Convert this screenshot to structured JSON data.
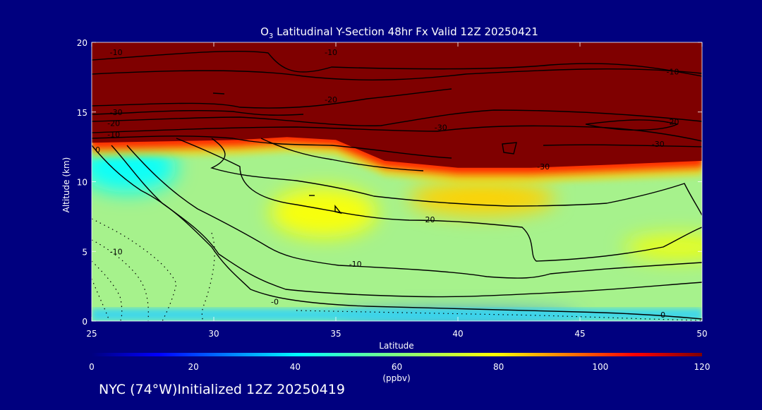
{
  "chart_data": {
    "type": "heatmap",
    "title_prefix": "O",
    "title_sub": "3",
    "title_rest": " Latitudinal Y-Section 48hr  Fx Valid 12Z 20250421",
    "xlabel": "Latitude",
    "ylabel": "Altitude (km)",
    "xlim": [
      25,
      50
    ],
    "ylim": [
      0,
      20
    ],
    "x_ticks": [
      25,
      30,
      35,
      40,
      45,
      50
    ],
    "y_ticks": [
      0,
      5,
      10,
      15,
      20
    ],
    "colorbar": {
      "label": "(ppbv)",
      "range": [
        0,
        120
      ],
      "ticks": [
        0,
        20,
        40,
        60,
        80,
        100,
        120
      ]
    },
    "ozone_field": {
      "stratosphere_level_ppbv": 120,
      "tropopause_altitude_km": [
        [
          25,
          12.8
        ],
        [
          28,
          12.9
        ],
        [
          31,
          13.0
        ],
        [
          33,
          13.2
        ],
        [
          35,
          13.0
        ],
        [
          37,
          11.5
        ],
        [
          40,
          11.0
        ],
        [
          43,
          11.0
        ],
        [
          46,
          11.2
        ],
        [
          50,
          11.5
        ]
      ],
      "blobs": [
        {
          "lat": 26.5,
          "alt": 11.0,
          "ppbv": 42,
          "rlat": 2.0,
          "ralt": 1.8
        },
        {
          "lat": 34.5,
          "alt": 7.8,
          "ppbv": 78,
          "rlat": 2.2,
          "ralt": 1.8
        },
        {
          "lat": 41.0,
          "alt": 8.8,
          "ppbv": 84,
          "rlat": 3.0,
          "ralt": 1.2
        },
        {
          "lat": 49.0,
          "alt": 5.3,
          "ppbv": 76,
          "rlat": 2.2,
          "ralt": 0.9
        },
        {
          "lat": 40.0,
          "alt": 0.2,
          "ppbv": 25,
          "rlat": 5.0,
          "ralt": 0.4
        }
      ]
    },
    "contour_labels": [
      {
        "text": "-10",
        "lat": 26.0,
        "alt": 19.3
      },
      {
        "text": "-10",
        "lat": 34.8,
        "alt": 19.3
      },
      {
        "text": "-10",
        "lat": 48.8,
        "alt": 17.9
      },
      {
        "text": "-20",
        "lat": 34.8,
        "alt": 15.9
      },
      {
        "text": "-30",
        "lat": 26.0,
        "alt": 15.0
      },
      {
        "text": "-20",
        "lat": 25.9,
        "alt": 14.2
      },
      {
        "text": "-10",
        "lat": 25.9,
        "alt": 13.4
      },
      {
        "text": "-30",
        "lat": 39.3,
        "alt": 13.9
      },
      {
        "text": "-20",
        "lat": 48.8,
        "alt": 14.3
      },
      {
        "text": "-30",
        "lat": 48.2,
        "alt": 12.7
      },
      {
        "text": "0",
        "lat": 25.25,
        "alt": 12.3
      },
      {
        "text": "-30",
        "lat": 43.5,
        "alt": 11.1
      },
      {
        "text": "-20",
        "lat": 38.8,
        "alt": 7.3
      },
      {
        "text": "-10",
        "lat": 26.0,
        "alt": 5.0
      },
      {
        "text": "-10",
        "lat": 35.8,
        "alt": 4.1
      },
      {
        "text": "-0",
        "lat": 32.5,
        "alt": 1.4
      },
      {
        "text": "0",
        "lat": 48.4,
        "alt": 0.45
      }
    ]
  },
  "footer_note": "NYC (74°W)Initialized 12Z 20250419"
}
